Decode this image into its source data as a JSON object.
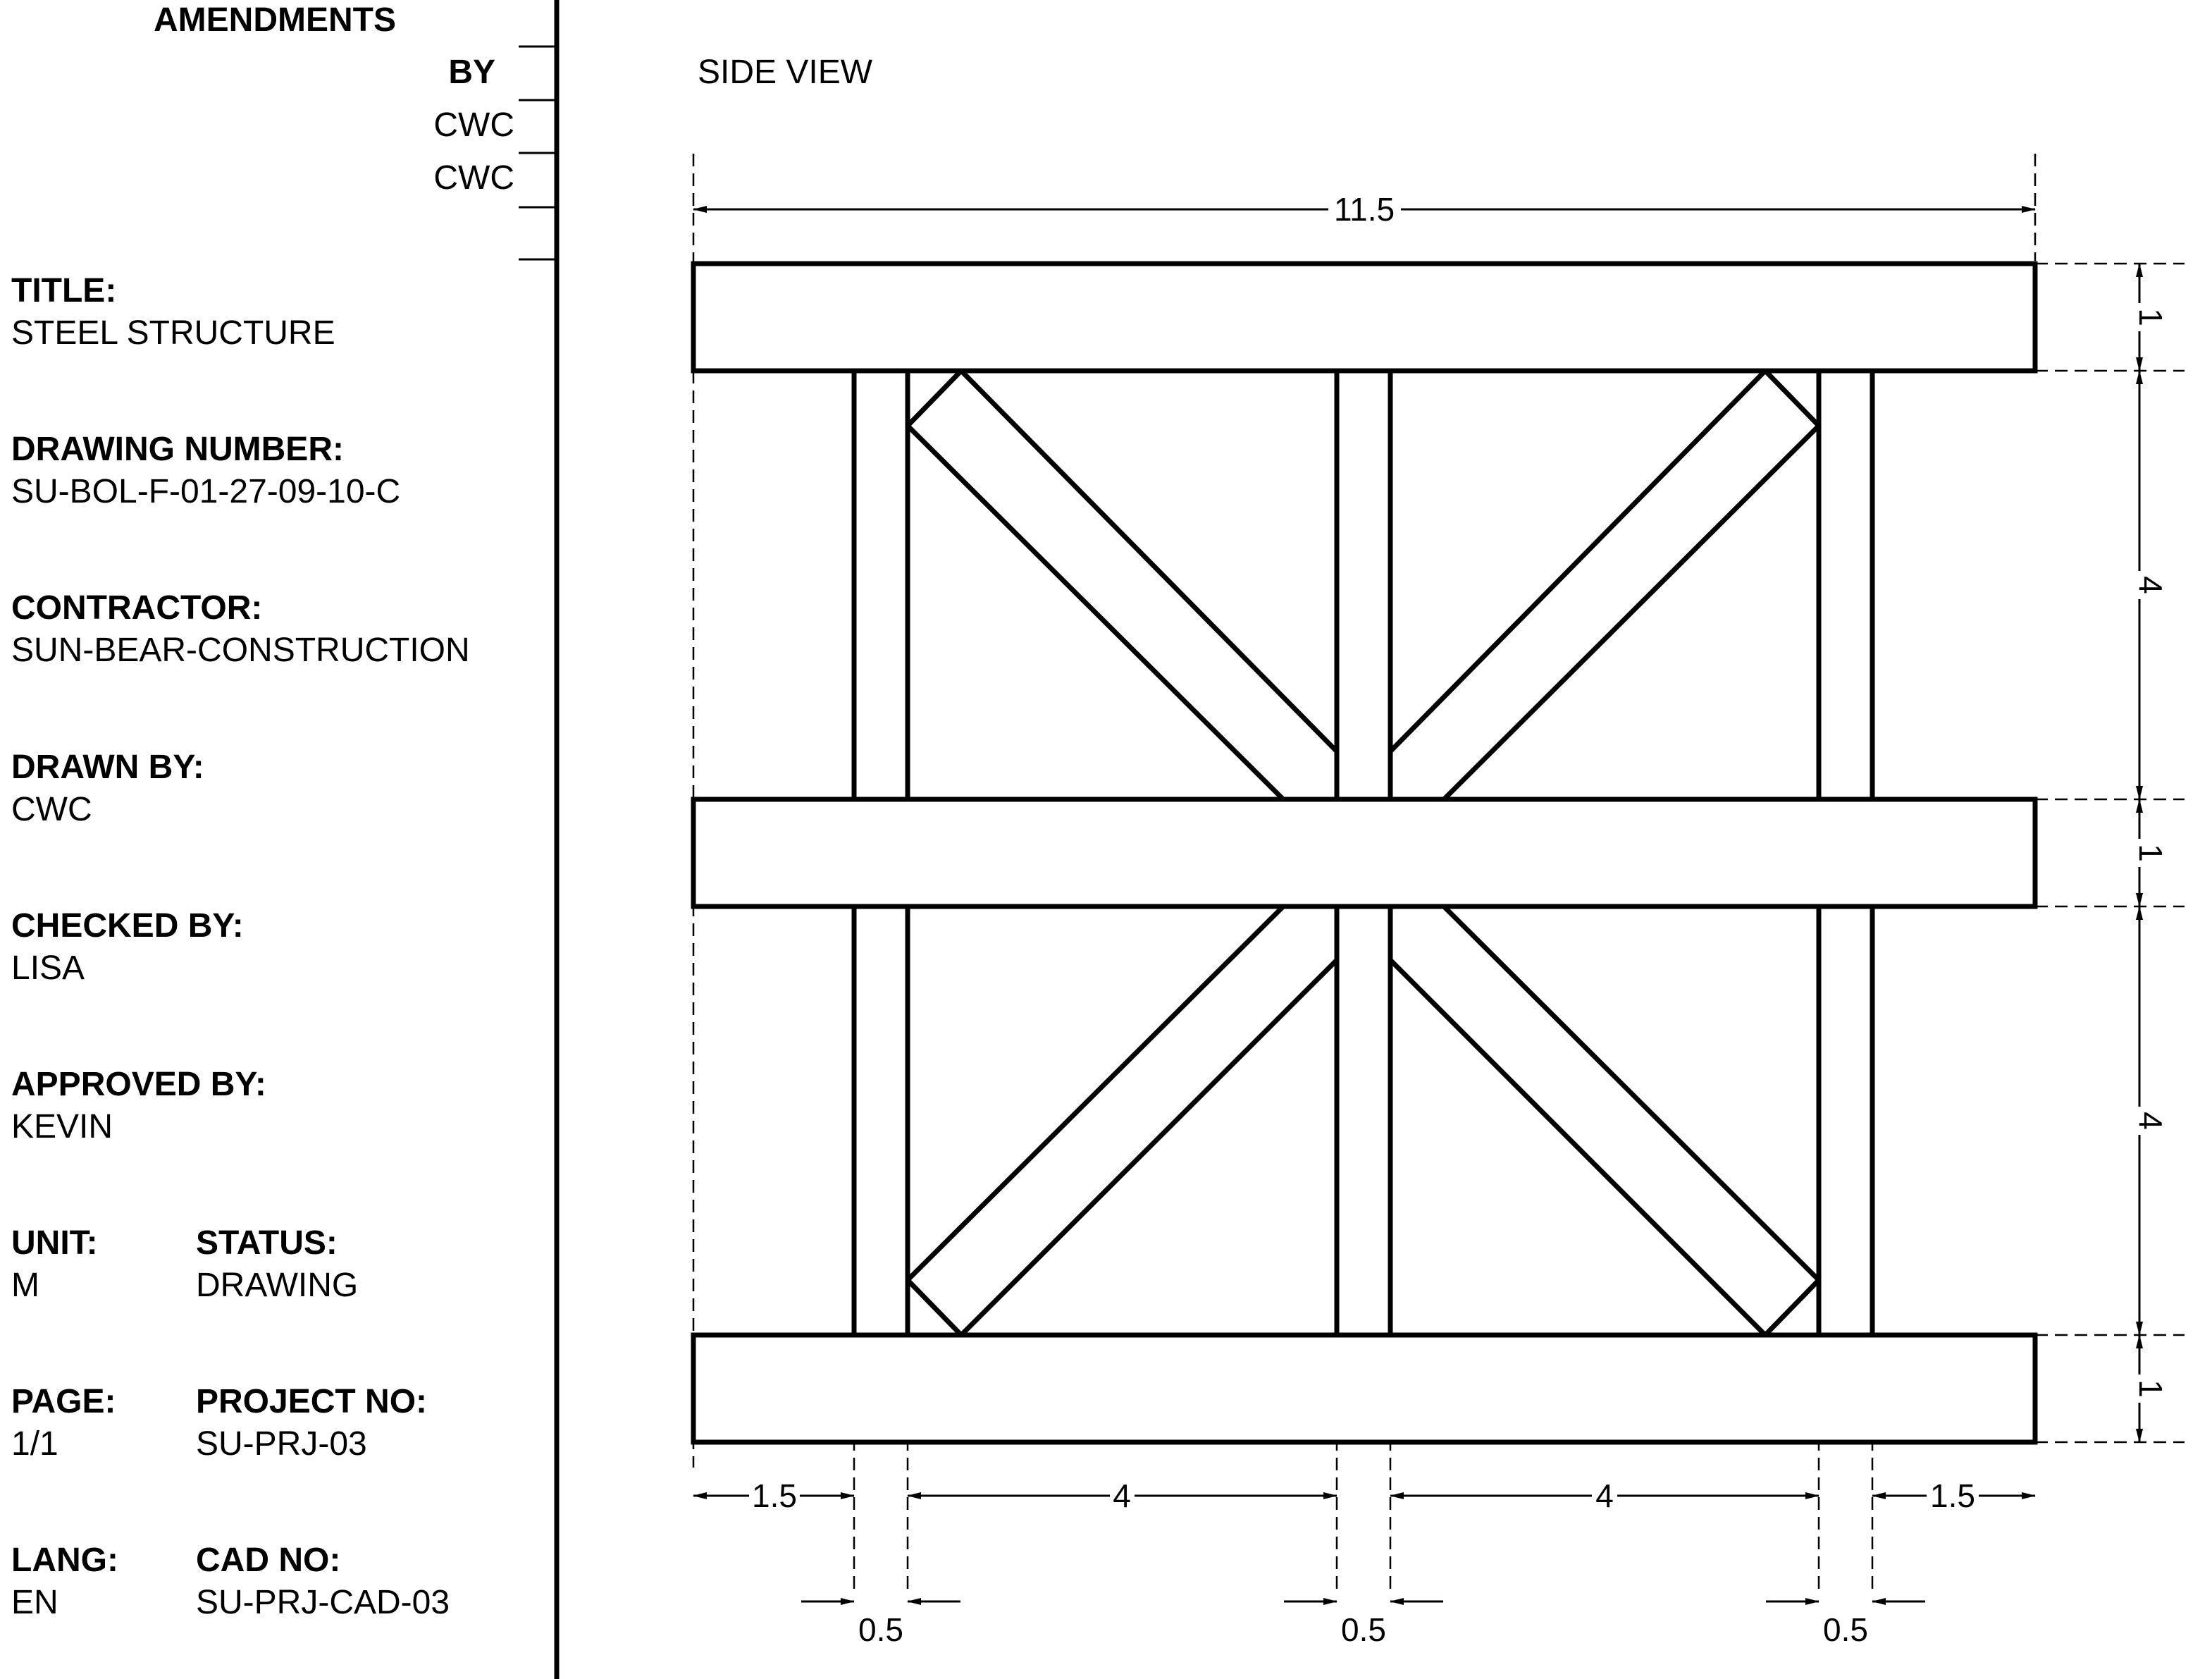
{
  "amendments": {
    "heading": "AMENDMENTS",
    "by_label": "BY",
    "rows": [
      "CWC",
      "CWC"
    ]
  },
  "title_block": {
    "title": {
      "label": "TITLE:",
      "value": "STEEL STRUCTURE"
    },
    "drawing_number": {
      "label": "DRAWING NUMBER:",
      "value": "SU-BOL-F-01-27-09-10-C"
    },
    "contractor": {
      "label": "CONTRACTOR:",
      "value": "SUN-BEAR-CONSTRUCTION"
    },
    "drawn_by": {
      "label": "DRAWN BY:",
      "value": "CWC"
    },
    "checked_by": {
      "label": "CHECKED BY:",
      "value": "LISA"
    },
    "approved_by": {
      "label": "APPROVED BY:",
      "value": "KEVIN"
    },
    "unit": {
      "label": "UNIT:",
      "value": "M"
    },
    "status": {
      "label": "STATUS:",
      "value": "DRAWING"
    },
    "page": {
      "label": "PAGE:",
      "value": "1/1"
    },
    "project_no": {
      "label": "PROJECT NO:",
      "value": "SU-PRJ-03"
    },
    "lang": {
      "label": "LANG:",
      "value": "EN"
    },
    "cad_no": {
      "label": "CAD NO:",
      "value": "SU-PRJ-CAD-03"
    }
  },
  "view": {
    "title": "SIDE VIEW"
  },
  "dimensions": {
    "overall_width": "11.5",
    "bottom_segments": [
      "1.5",
      "4",
      "4",
      "1.5"
    ],
    "column_widths": [
      "0.5",
      "0.5",
      "0.5"
    ],
    "right_segments": [
      "1",
      "4",
      "1",
      "4",
      "1"
    ]
  }
}
